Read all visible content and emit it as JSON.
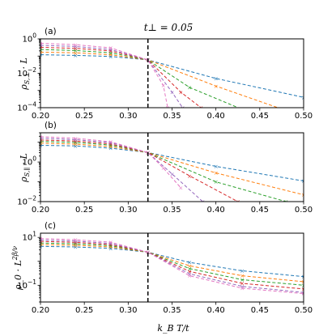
{
  "figure": {
    "title": "t⊥ = 0.05",
    "xlabel": "k_B T/t",
    "critical_x": 0.3225
  },
  "chart_data": [
    {
      "type": "line",
      "panel_label": "(a)",
      "ylabel": "ρ_{S,⊥} · L",
      "yscale": "log",
      "ylim": [
        0.0001,
        1
      ],
      "xlim": [
        0.2,
        0.5
      ],
      "xticks": [
        "0.20",
        "0.25",
        "0.30",
        "0.35",
        "0.40",
        "0.45",
        "0.50"
      ],
      "yticks": [
        {
          "value": 1,
          "label": "10^0"
        },
        {
          "value": 0.01,
          "label": "10^-2"
        },
        {
          "value": 0.0001,
          "label": "10^-4"
        }
      ],
      "series": [
        {
          "color": "#1f77b4",
          "x": [
            0.2,
            0.24,
            0.28,
            0.3225,
            0.4,
            0.5
          ],
          "y": [
            0.12,
            0.11,
            0.095,
            0.06,
            0.005,
            0.0004
          ]
        },
        {
          "color": "#ff7f0e",
          "x": [
            0.2,
            0.24,
            0.28,
            0.3225,
            0.4,
            0.5
          ],
          "y": [
            0.17,
            0.155,
            0.12,
            0.06,
            0.0018,
            3e-05
          ]
        },
        {
          "color": "#2ca02c",
          "x": [
            0.2,
            0.24,
            0.28,
            0.3225,
            0.37,
            0.43
          ],
          "y": [
            0.24,
            0.21,
            0.155,
            0.06,
            0.0015,
            8e-05
          ]
        },
        {
          "color": "#d62728",
          "x": [
            0.2,
            0.24,
            0.28,
            0.3225,
            0.36,
            0.383
          ],
          "y": [
            0.32,
            0.28,
            0.2,
            0.06,
            0.0008,
            0.0001
          ]
        },
        {
          "color": "#9467bd",
          "x": [
            0.2,
            0.24,
            0.28,
            0.3225,
            0.35,
            0.362
          ],
          "y": [
            0.42,
            0.36,
            0.24,
            0.06,
            0.0008,
            0.0001
          ]
        },
        {
          "color": "#e377c2",
          "x": [
            0.2,
            0.24,
            0.28,
            0.3225,
            0.34,
            0.345
          ],
          "y": [
            0.55,
            0.46,
            0.3,
            0.06,
            0.002,
            0.0001
          ]
        }
      ]
    },
    {
      "type": "line",
      "panel_label": "(b)",
      "ylabel": "ρ_{S,∥} · L",
      "yscale": "log",
      "ylim": [
        0.01,
        30
      ],
      "xlim": [
        0.2,
        0.5
      ],
      "xticks": [
        "0.20",
        "0.25",
        "0.30",
        "0.35",
        "0.40",
        "0.45",
        "0.50"
      ],
      "yticks": [
        {
          "value": 1,
          "label": "10^0"
        },
        {
          "value": 0.01,
          "label": "10^-2"
        }
      ],
      "series": [
        {
          "color": "#1f77b4",
          "x": [
            0.2,
            0.24,
            0.28,
            0.3225,
            0.4,
            0.5
          ],
          "y": [
            7,
            6.5,
            5,
            3,
            0.6,
            0.11
          ]
        },
        {
          "color": "#ff7f0e",
          "x": [
            0.2,
            0.24,
            0.28,
            0.3225,
            0.4,
            0.5
          ],
          "y": [
            9,
            8,
            6,
            3,
            0.28,
            0.022
          ]
        },
        {
          "color": "#2ca02c",
          "x": [
            0.2,
            0.24,
            0.28,
            0.3225,
            0.4,
            0.48
          ],
          "y": [
            11,
            9.8,
            7.2,
            3,
            0.1,
            0.01
          ]
        },
        {
          "color": "#d62728",
          "x": [
            0.2,
            0.24,
            0.28,
            0.3225,
            0.37,
            0.425
          ],
          "y": [
            13,
            11.5,
            8.2,
            3,
            0.2,
            0.01
          ]
        },
        {
          "color": "#9467bd",
          "x": [
            0.2,
            0.24,
            0.28,
            0.3225,
            0.35,
            0.385
          ],
          "y": [
            16,
            13.5,
            9.5,
            3,
            0.25,
            0.01
          ]
        },
        {
          "color": "#e377c2",
          "x": [
            0.2,
            0.24,
            0.28,
            0.3225,
            0.34,
            0.36
          ],
          "y": [
            19,
            16,
            10.5,
            3,
            0.5,
            0.05
          ]
        }
      ]
    },
    {
      "type": "line",
      "panel_label": "(c)",
      "ylabel": "ρ_0 · L^{2β/ν}",
      "yscale": "log",
      "ylim": [
        0.02,
        15
      ],
      "xlim": [
        0.2,
        0.5
      ],
      "xticks": [
        "0.20",
        "0.25",
        "0.30",
        "0.35",
        "0.40",
        "0.45",
        "0.50"
      ],
      "yticks": [
        {
          "value": 10,
          "label": "10^1"
        },
        {
          "value": 0.1,
          "label": "10^-1"
        }
      ],
      "series": [
        {
          "color": "#1f77b4",
          "x": [
            0.2,
            0.24,
            0.28,
            0.3225,
            0.37,
            0.43,
            0.5
          ],
          "y": [
            4.2,
            4,
            3.5,
            2.4,
            0.9,
            0.4,
            0.23
          ]
        },
        {
          "color": "#ff7f0e",
          "x": [
            0.2,
            0.24,
            0.28,
            0.3225,
            0.37,
            0.43,
            0.5
          ],
          "y": [
            5,
            4.7,
            4,
            2.4,
            0.65,
            0.25,
            0.14
          ]
        },
        {
          "color": "#2ca02c",
          "x": [
            0.2,
            0.24,
            0.28,
            0.3225,
            0.37,
            0.43,
            0.5
          ],
          "y": [
            5.8,
            5.4,
            4.5,
            2.4,
            0.5,
            0.17,
            0.1
          ]
        },
        {
          "color": "#d62728",
          "x": [
            0.2,
            0.24,
            0.28,
            0.3225,
            0.37,
            0.43,
            0.5
          ],
          "y": [
            6.8,
            6.2,
            5,
            2.4,
            0.38,
            0.12,
            0.07
          ]
        },
        {
          "color": "#9467bd",
          "x": [
            0.2,
            0.24,
            0.28,
            0.3225,
            0.37,
            0.43,
            0.5
          ],
          "y": [
            7.8,
            7,
            5.6,
            2.4,
            0.3,
            0.09,
            0.05
          ]
        },
        {
          "color": "#e377c2",
          "x": [
            0.2,
            0.24,
            0.28,
            0.3225,
            0.37,
            0.43,
            0.5
          ],
          "y": [
            9,
            8,
            6.3,
            2.4,
            0.25,
            0.075,
            0.045
          ]
        }
      ]
    }
  ]
}
